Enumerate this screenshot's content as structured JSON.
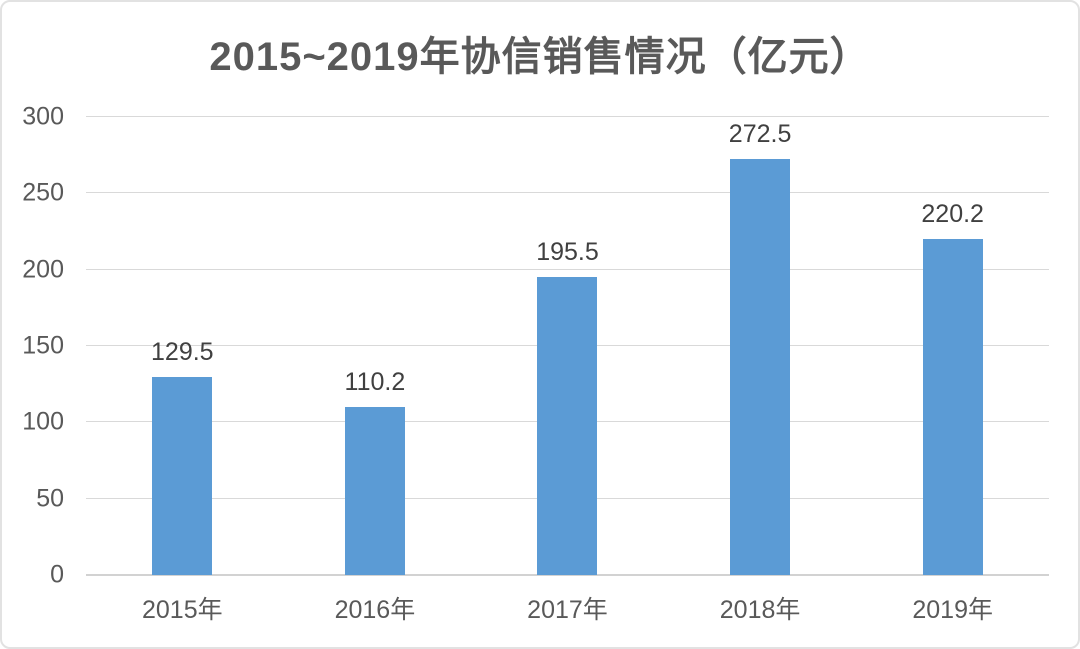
{
  "chart_data": {
    "type": "bar",
    "title": "2015~2019年协信销售情况（亿元）",
    "categories": [
      "2015年",
      "2016年",
      "2017年",
      "2018年",
      "2019年"
    ],
    "values": [
      129.5,
      110.2,
      195.5,
      272.5,
      220.2
    ],
    "value_labels": [
      "129.5",
      "110.2",
      "195.5",
      "272.5",
      "220.2"
    ],
    "xlabel": "",
    "ylabel": "",
    "ylim": [
      0,
      300
    ],
    "yticks": [
      0,
      50,
      100,
      150,
      200,
      250,
      300
    ],
    "grid": true,
    "legend_position": "none",
    "colors": {
      "bar_fill": "#5B9BD5",
      "title_text": "#595959",
      "tick_text": "#595959",
      "data_label_text": "#404040",
      "gridline": "#D9D9D9",
      "axis_line": "#D2D2D2",
      "frame_border": "#E2E2E2",
      "background": "#FFFFFF"
    }
  }
}
